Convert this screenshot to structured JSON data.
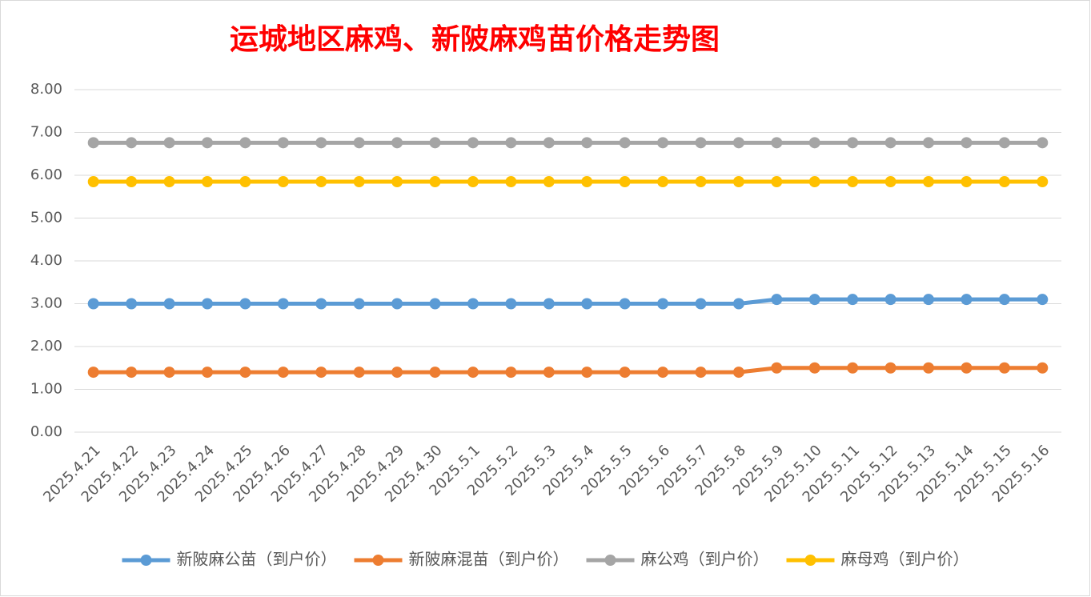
{
  "chart_data": {
    "type": "line",
    "title": "运城地区麻鸡、新陂麻鸡苗价格走势图",
    "categories": [
      "2025.4.21",
      "2025.4.22",
      "2025.4.23",
      "2025.4.24",
      "2025.4.25",
      "2025.4.26",
      "2025.4.27",
      "2025.4.28",
      "2025.4.29",
      "2025.4.30",
      "2025.5.1",
      "2025.5.2",
      "2025.5.3",
      "2025.5.4",
      "2025.5.5",
      "2025.5.6",
      "2025.5.7",
      "2025.5.8",
      "2025.5.9",
      "2025.5.10",
      "2025.5.11",
      "2025.5.12",
      "2025.5.13",
      "2025.5.14",
      "2025.5.15",
      "2025.5.16"
    ],
    "series": [
      {
        "name": "新陂麻公苗（到户价）",
        "color": "#5b9bd5",
        "values": [
          3.0,
          3.0,
          3.0,
          3.0,
          3.0,
          3.0,
          3.0,
          3.0,
          3.0,
          3.0,
          3.0,
          3.0,
          3.0,
          3.0,
          3.0,
          3.0,
          3.0,
          3.0,
          3.1,
          3.1,
          3.1,
          3.1,
          3.1,
          3.1,
          3.1,
          3.1
        ]
      },
      {
        "name": "新陂麻混苗（到户价）",
        "color": "#ed7d31",
        "values": [
          1.4,
          1.4,
          1.4,
          1.4,
          1.4,
          1.4,
          1.4,
          1.4,
          1.4,
          1.4,
          1.4,
          1.4,
          1.4,
          1.4,
          1.4,
          1.4,
          1.4,
          1.4,
          1.5,
          1.5,
          1.5,
          1.5,
          1.5,
          1.5,
          1.5,
          1.5
        ]
      },
      {
        "name": "麻公鸡（到户价）",
        "color": "#a5a5a5",
        "values": [
          6.76,
          6.76,
          6.76,
          6.76,
          6.76,
          6.76,
          6.76,
          6.76,
          6.76,
          6.76,
          6.76,
          6.76,
          6.76,
          6.76,
          6.76,
          6.76,
          6.76,
          6.76,
          6.76,
          6.76,
          6.76,
          6.76,
          6.76,
          6.76,
          6.76,
          6.76
        ]
      },
      {
        "name": "麻母鸡（到户价）",
        "color": "#ffc000",
        "values": [
          5.85,
          5.85,
          5.85,
          5.85,
          5.85,
          5.85,
          5.85,
          5.85,
          5.85,
          5.85,
          5.85,
          5.85,
          5.85,
          5.85,
          5.85,
          5.85,
          5.85,
          5.85,
          5.85,
          5.85,
          5.85,
          5.85,
          5.85,
          5.85,
          5.85,
          5.85
        ]
      }
    ],
    "ylim": [
      0,
      8
    ],
    "yticks": [
      {
        "value": 0,
        "label": "0.00"
      },
      {
        "value": 1,
        "label": "1.00"
      },
      {
        "value": 2,
        "label": "2.00"
      },
      {
        "value": 3,
        "label": "3.00"
      },
      {
        "value": 4,
        "label": "4.00"
      },
      {
        "value": 5,
        "label": "5.00"
      },
      {
        "value": 6,
        "label": "6.00"
      },
      {
        "value": 7,
        "label": "7.00"
      },
      {
        "value": 8,
        "label": "8.00"
      }
    ],
    "grid": true,
    "legend": "bottom",
    "title_color": "#ff0000"
  }
}
